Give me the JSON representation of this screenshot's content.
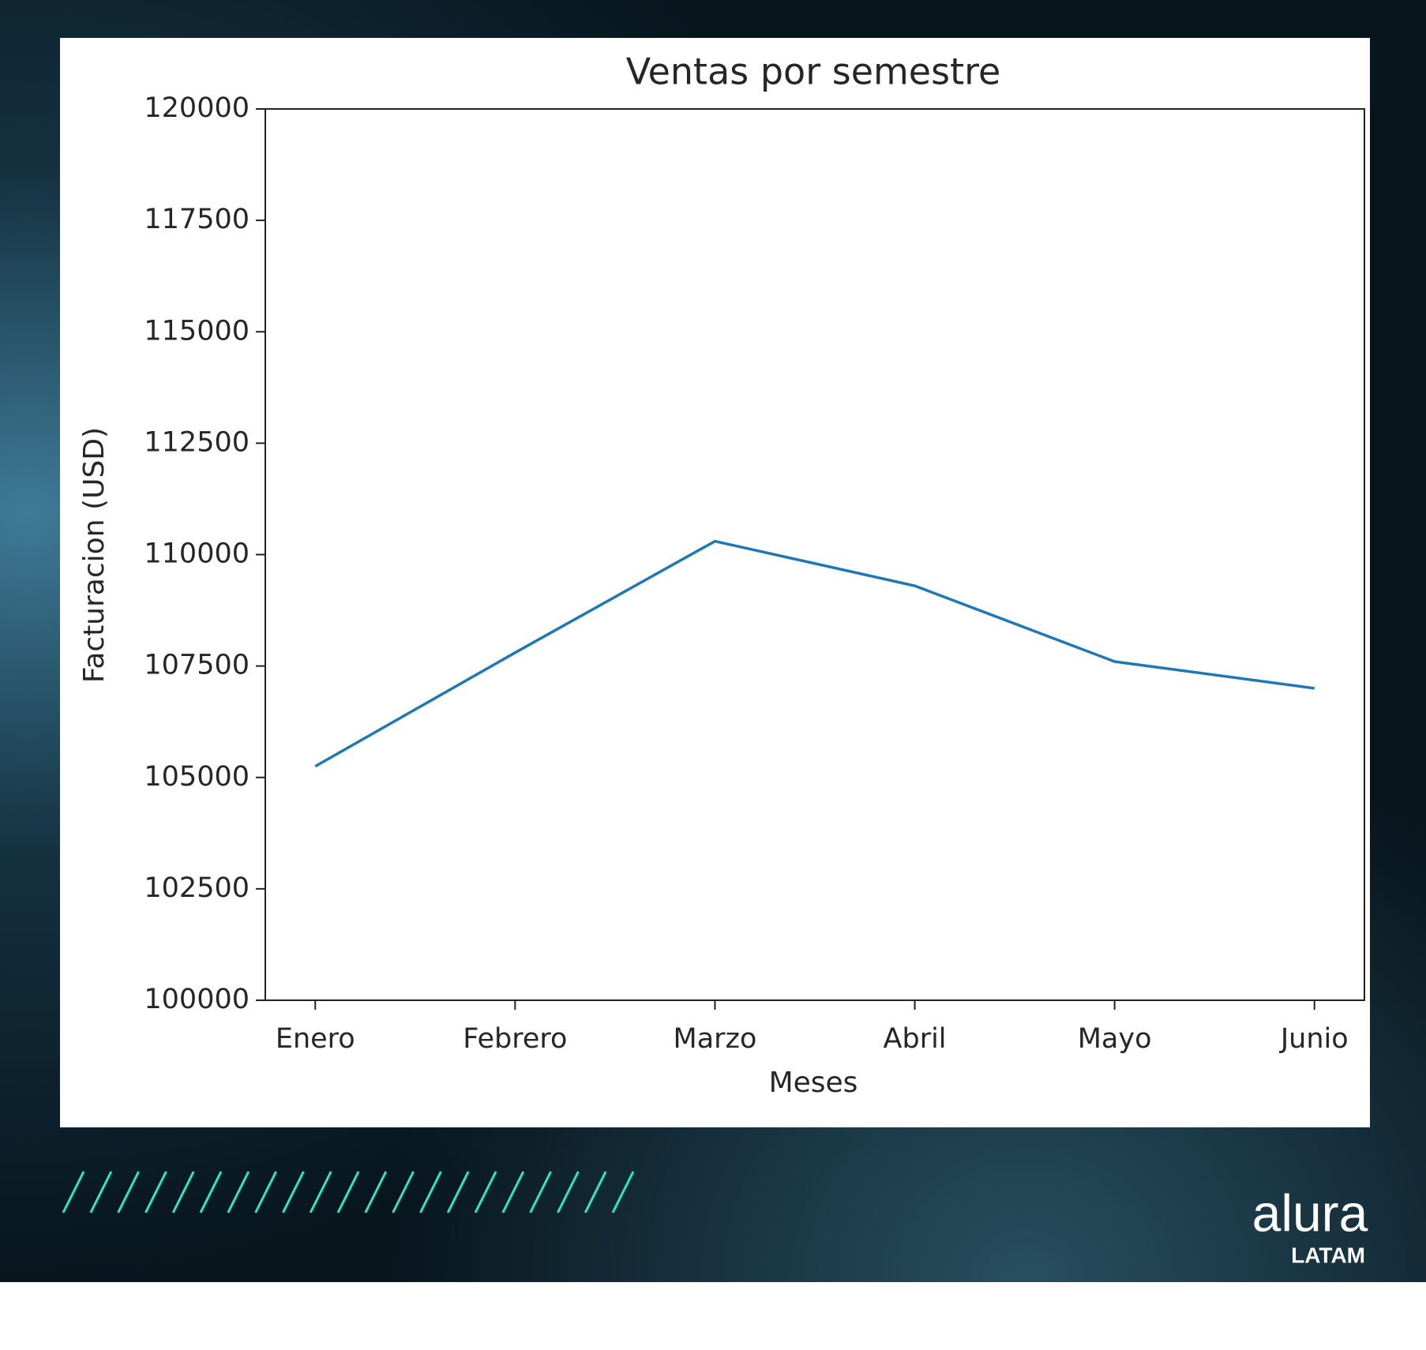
{
  "chart_data": {
    "type": "line",
    "title": "Ventas por semestre",
    "x_label": "Meses",
    "y_label": "Facturacion (USD)",
    "categories": [
      "Enero",
      "Febrero",
      "Marzo",
      "Abril",
      "Mayo",
      "Junio"
    ],
    "series": [
      {
        "name": "Facturacion",
        "color": "#1f77b4",
        "values": [
          105250,
          107800,
          110300,
          109300,
          107600,
          107000
        ]
      }
    ],
    "ylim": [
      100000,
      120000
    ],
    "yticks": [
      100000,
      102500,
      105000,
      107500,
      110000,
      112500,
      115000,
      117500,
      120000
    ],
    "grid": false
  },
  "branding": {
    "logo": "alura",
    "region": "LATAM"
  }
}
